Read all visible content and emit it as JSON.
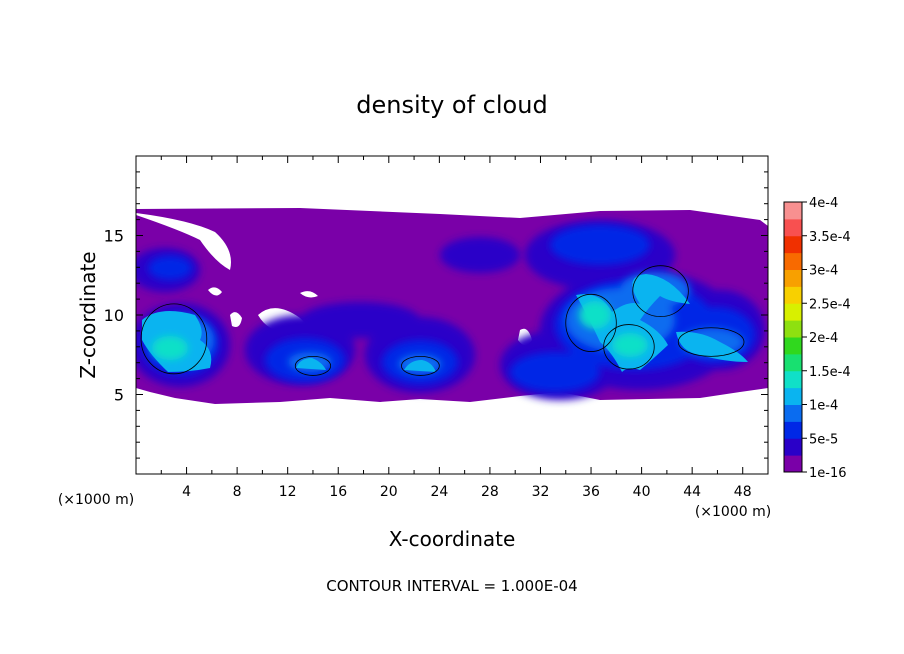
{
  "chart_data": {
    "type": "heatmap",
    "title": "density of cloud",
    "xlabel": "X-coordinate",
    "ylabel": "Z-coordinate",
    "x_unit": "(×1000 m)",
    "y_unit": "(×1000 m)",
    "xlim": [
      0,
      50
    ],
    "ylim": [
      0,
      20
    ],
    "x_ticks": [
      "4",
      "8",
      "12",
      "16",
      "20",
      "24",
      "28",
      "32",
      "36",
      "40",
      "44",
      "48"
    ],
    "y_ticks": [
      "5",
      "10",
      "15"
    ],
    "footer": "CONTOUR INTERVAL = 1.000E-04",
    "colorbar": {
      "levels": [
        "1e-16",
        "5e-5",
        "1e-4",
        "1.5e-4",
        "2e-4",
        "2.5e-4",
        "3e-4",
        "3.5e-4",
        "4e-4"
      ],
      "colors": [
        "#7a00a8",
        "#2a00c8",
        "#0028e6",
        "#0a6cf0",
        "#0ab4f0",
        "#10e0c8",
        "#18e070",
        "#30d81e",
        "#8ee010",
        "#d8f000",
        "#f8d000",
        "#f8a000",
        "#f86a00",
        "#f03000",
        "#f85050",
        "#f89090"
      ]
    },
    "contour_regions": [
      {
        "x": 3.0,
        "z": 8.5,
        "rx": 2.6,
        "rz": 2.2,
        "level": 0.00012
      },
      {
        "x": 14.0,
        "z": 6.8,
        "rx": 1.4,
        "rz": 0.6,
        "level": 0.00011
      },
      {
        "x": 22.5,
        "z": 6.8,
        "rx": 1.5,
        "rz": 0.6,
        "level": 0.00011
      },
      {
        "x": 36.0,
        "z": 9.5,
        "rx": 2.0,
        "rz": 1.8,
        "level": 0.00016
      },
      {
        "x": 39.0,
        "z": 8.0,
        "rx": 2.0,
        "rz": 1.4,
        "level": 0.00015
      },
      {
        "x": 41.5,
        "z": 11.5,
        "rx": 2.2,
        "rz": 1.6,
        "level": 0.00013
      },
      {
        "x": 45.5,
        "z": 8.3,
        "rx": 2.6,
        "rz": 0.9,
        "level": 0.00012
      }
    ]
  }
}
